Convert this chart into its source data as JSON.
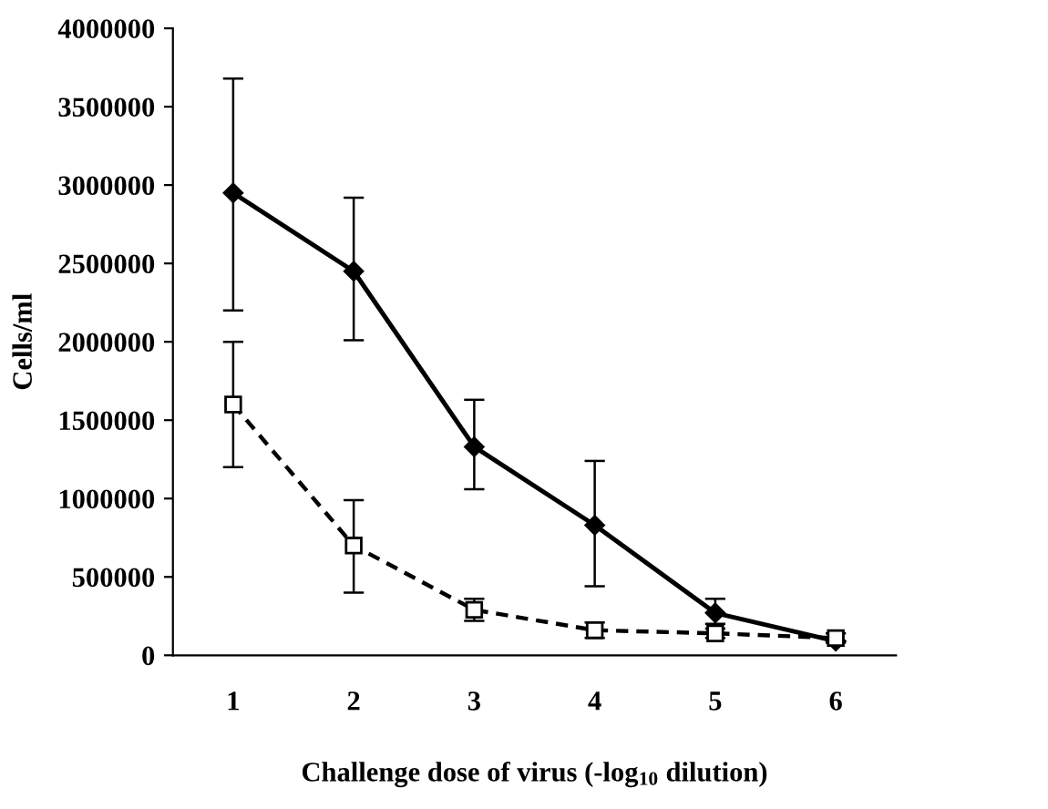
{
  "chart_data": {
    "type": "line",
    "xlabel": "Challenge dose of virus (-log$_{10}$ dilution)",
    "ylabel": "Cells/ml",
    "categories": [
      "1",
      "2",
      "3",
      "4",
      "5",
      "6"
    ],
    "ylim": [
      0,
      4000000
    ],
    "yticks": [
      0,
      500000,
      1000000,
      1500000,
      2000000,
      2500000,
      3000000,
      3500000,
      4000000
    ],
    "grid": false,
    "legend": false,
    "series": [
      {
        "color": "#000000",
        "marker": "diamond",
        "line_style": "solid",
        "values": [
          2950000,
          2450000,
          1330000,
          830000,
          270000,
          90000
        ],
        "errors": [
          [
            2200000,
            3680000
          ],
          [
            2010000,
            2920000
          ],
          [
            1060000,
            1630000
          ],
          [
            440000,
            1240000
          ],
          [
            200000,
            360000
          ],
          null
        ]
      },
      {
        "color": "#000000",
        "marker": "square",
        "line_style": "dashed",
        "values": [
          1600000,
          700000,
          290000,
          160000,
          140000,
          110000
        ],
        "errors": [
          [
            1200000,
            2000000
          ],
          [
            400000,
            990000
          ],
          [
            220000,
            360000
          ],
          [
            110000,
            210000
          ],
          [
            110000,
            170000
          ],
          [
            80000,
            140000
          ]
        ]
      }
    ]
  }
}
